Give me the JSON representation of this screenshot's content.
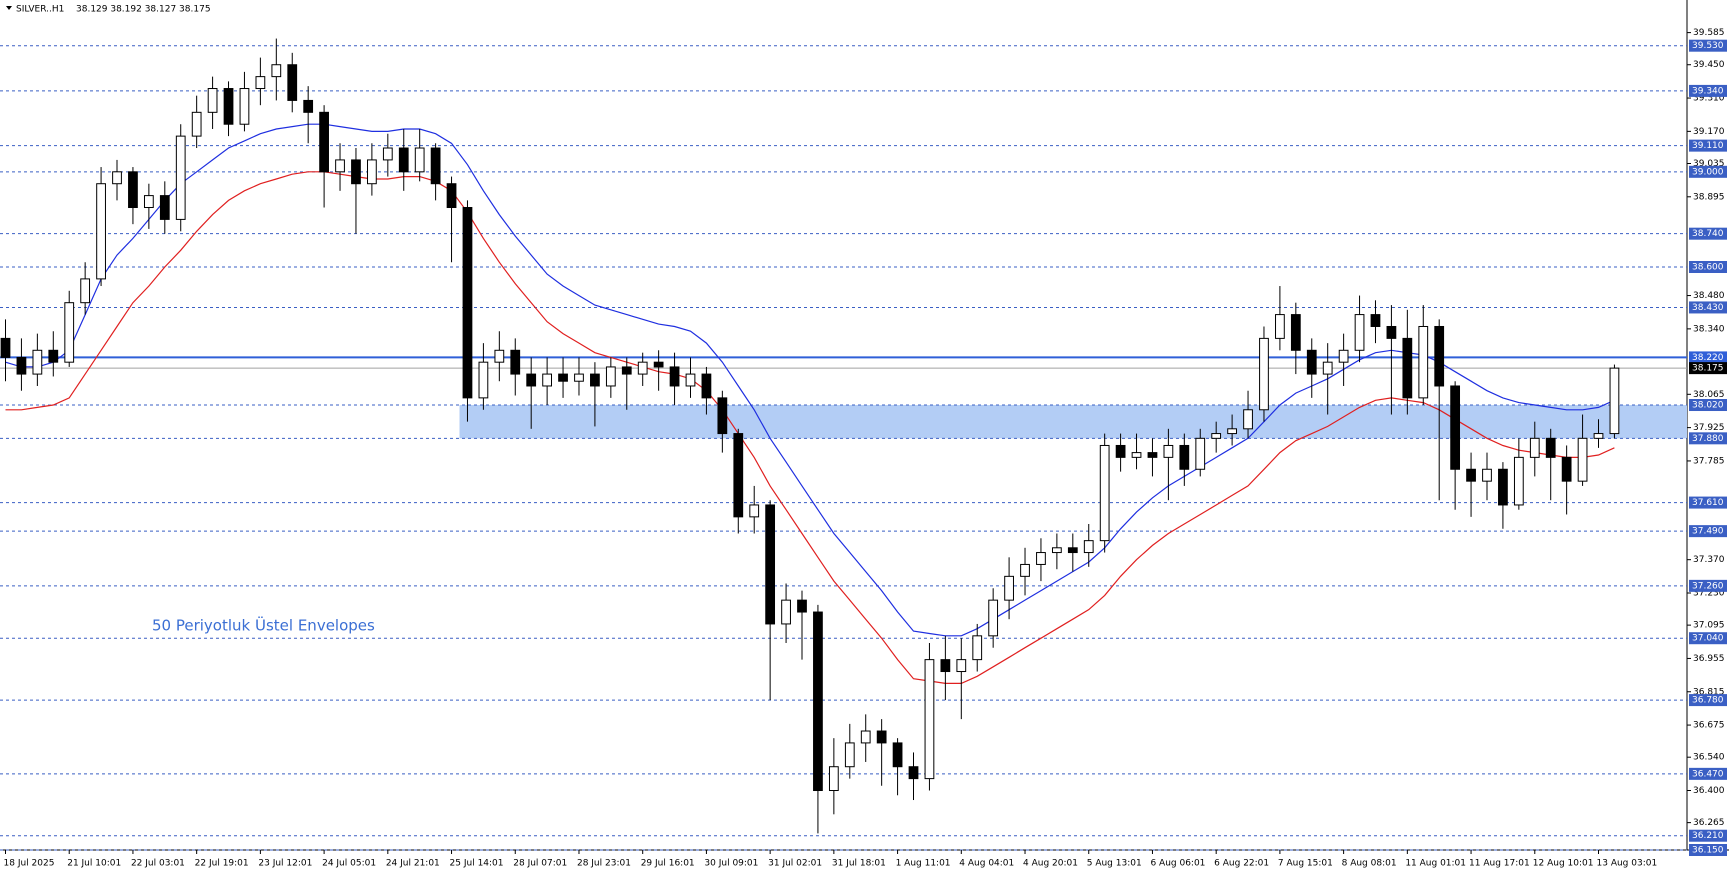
{
  "chart_data": {
    "type": "candlestick",
    "title": "SILVER..H1",
    "ohlc_text": "38.129 38.192 38.127 38.175",
    "annotation": "50 Periyotluk Üstel Envelopes",
    "ylim": [
      36.15,
      39.68
    ],
    "yticks": [
      39.585,
      {
        "value": 39.45,
        "label": "39.450"
      },
      {
        "value": 39.31,
        "label": "39.310"
      },
      {
        "value": 39.17,
        "label": "39.170"
      },
      39.035,
      38.895,
      {
        "value": 38.48,
        "label": "38.480"
      },
      {
        "value": 38.34,
        "label": "38.340"
      },
      38.065,
      37.925,
      37.785,
      {
        "value": 37.37,
        "label": "37.370"
      },
      {
        "value": 37.23,
        "label": "37.230"
      },
      37.095,
      36.955,
      36.815,
      36.675,
      {
        "value": 36.54,
        "label": "36.540"
      },
      {
        "value": 36.4,
        "label": "36.400"
      },
      36.265
    ],
    "categories": [
      "18 Jul 2025",
      null,
      null,
      null,
      "21 Jul 10:01",
      null,
      null,
      null,
      "22 Jul 03:01",
      null,
      null,
      null,
      "22 Jul 19:01",
      null,
      null,
      null,
      "23 Jul 12:01",
      null,
      null,
      null,
      "24 Jul 05:01",
      null,
      null,
      null,
      "24 Jul 21:01",
      null,
      null,
      null,
      "25 Jul 14:01",
      null,
      null,
      null,
      "28 Jul 07:01",
      null,
      null,
      null,
      "28 Jul 23:01",
      null,
      null,
      null,
      "29 Jul 16:01",
      null,
      null,
      null,
      "30 Jul 09:01",
      null,
      null,
      null,
      "31 Jul 02:01",
      null,
      null,
      null,
      "31 Jul 18:01",
      null,
      null,
      null,
      "1 Aug 11:01",
      null,
      null,
      null,
      "4 Aug 04:01",
      null,
      null,
      null,
      "4 Aug 20:01",
      null,
      null,
      null,
      "5 Aug 13:01",
      null,
      null,
      null,
      "6 Aug 06:01",
      null,
      null,
      null,
      "6 Aug 22:01",
      null,
      null,
      null,
      "7 Aug 15:01",
      null,
      null,
      null,
      "8 Aug 08:01",
      null,
      null,
      null,
      "11 Aug 01:01",
      null,
      null,
      null,
      "11 Aug 17:01",
      null,
      null,
      null,
      "12 Aug 10:01",
      null,
      null,
      null,
      "13 Aug 03:01",
      null
    ],
    "candles": [
      [
        38.3,
        38.38,
        38.12,
        38.22
      ],
      [
        38.22,
        38.3,
        38.08,
        38.15
      ],
      [
        38.15,
        38.32,
        38.1,
        38.25
      ],
      [
        38.25,
        38.33,
        38.14,
        38.2
      ],
      [
        38.2,
        38.5,
        38.18,
        38.45
      ],
      [
        38.45,
        38.62,
        38.4,
        38.55
      ],
      [
        38.55,
        39.02,
        38.52,
        38.95
      ],
      [
        38.95,
        39.05,
        38.88,
        39.0
      ],
      [
        39.0,
        39.02,
        38.78,
        38.85
      ],
      [
        38.85,
        38.95,
        38.76,
        38.9
      ],
      [
        38.9,
        38.96,
        38.74,
        38.8
      ],
      [
        38.8,
        39.2,
        38.75,
        39.15
      ],
      [
        39.15,
        39.32,
        39.1,
        39.25
      ],
      [
        39.25,
        39.4,
        39.18,
        39.35
      ],
      [
        39.35,
        39.38,
        39.15,
        39.2
      ],
      [
        39.2,
        39.42,
        39.17,
        39.35
      ],
      [
        39.35,
        39.48,
        39.28,
        39.4
      ],
      [
        39.4,
        39.56,
        39.3,
        39.45
      ],
      [
        39.45,
        39.5,
        39.25,
        39.3
      ],
      [
        39.3,
        39.36,
        39.12,
        39.25
      ],
      [
        39.25,
        39.28,
        38.85,
        39.0
      ],
      [
        39.0,
        39.12,
        38.92,
        39.05
      ],
      [
        39.05,
        39.1,
        38.74,
        38.95
      ],
      [
        38.95,
        39.12,
        38.9,
        39.05
      ],
      [
        39.05,
        39.16,
        38.98,
        39.1
      ],
      [
        39.1,
        39.18,
        38.92,
        39.0
      ],
      [
        39.0,
        39.18,
        38.96,
        39.1
      ],
      [
        39.1,
        39.12,
        38.88,
        38.95
      ],
      [
        38.95,
        38.98,
        38.62,
        38.85
      ],
      [
        38.85,
        38.88,
        37.95,
        38.05
      ],
      [
        38.05,
        38.28,
        38.0,
        38.2
      ],
      [
        38.2,
        38.33,
        38.12,
        38.25
      ],
      [
        38.25,
        38.3,
        38.06,
        38.15
      ],
      [
        38.15,
        38.22,
        37.92,
        38.1
      ],
      [
        38.1,
        38.22,
        38.02,
        38.15
      ],
      [
        38.15,
        38.22,
        38.05,
        38.12
      ],
      [
        38.12,
        38.22,
        38.06,
        38.15
      ],
      [
        38.15,
        38.2,
        37.93,
        38.1
      ],
      [
        38.1,
        38.22,
        38.05,
        38.18
      ],
      [
        38.18,
        38.22,
        38.0,
        38.15
      ],
      [
        38.15,
        38.24,
        38.1,
        38.2
      ],
      [
        38.2,
        38.25,
        38.08,
        38.18
      ],
      [
        38.18,
        38.24,
        38.02,
        38.1
      ],
      [
        38.1,
        38.22,
        38.05,
        38.15
      ],
      [
        38.15,
        38.18,
        37.98,
        38.05
      ],
      [
        38.05,
        38.08,
        37.82,
        37.9
      ],
      [
        37.9,
        37.92,
        37.48,
        37.55
      ],
      [
        37.55,
        37.68,
        37.48,
        37.6
      ],
      [
        37.6,
        37.62,
        36.78,
        37.1
      ],
      [
        37.1,
        37.27,
        37.02,
        37.2
      ],
      [
        37.2,
        37.24,
        36.95,
        37.15
      ],
      [
        37.15,
        37.18,
        36.22,
        36.4
      ],
      [
        36.4,
        36.62,
        36.3,
        36.5
      ],
      [
        36.5,
        36.68,
        36.45,
        36.6
      ],
      [
        36.6,
        36.72,
        36.52,
        36.65
      ],
      [
        36.65,
        36.7,
        36.42,
        36.6
      ],
      [
        36.6,
        36.62,
        36.38,
        36.5
      ],
      [
        36.5,
        36.56,
        36.36,
        36.45
      ],
      [
        36.45,
        37.02,
        36.4,
        36.95
      ],
      [
        36.95,
        37.05,
        36.78,
        36.9
      ],
      [
        36.9,
        37.04,
        36.7,
        36.95
      ],
      [
        36.95,
        37.1,
        36.9,
        37.05
      ],
      [
        37.05,
        37.25,
        37.0,
        37.2
      ],
      [
        37.2,
        37.38,
        37.12,
        37.3
      ],
      [
        37.3,
        37.42,
        37.22,
        37.35
      ],
      [
        37.35,
        37.46,
        37.28,
        37.4
      ],
      [
        37.4,
        37.48,
        37.33,
        37.42
      ],
      [
        37.42,
        37.48,
        37.32,
        37.4
      ],
      [
        37.4,
        37.52,
        37.34,
        37.45
      ],
      [
        37.45,
        37.9,
        37.4,
        37.85
      ],
      [
        37.85,
        37.9,
        37.74,
        37.8
      ],
      [
        37.8,
        37.9,
        37.75,
        37.82
      ],
      [
        37.82,
        37.88,
        37.72,
        37.8
      ],
      [
        37.8,
        37.92,
        37.62,
        37.85
      ],
      [
        37.85,
        37.9,
        37.68,
        37.75
      ],
      [
        37.75,
        37.92,
        37.72,
        37.88
      ],
      [
        37.88,
        37.95,
        37.82,
        37.9
      ],
      [
        37.9,
        37.98,
        37.85,
        37.92
      ],
      [
        37.92,
        38.08,
        37.88,
        38.0
      ],
      [
        38.0,
        38.35,
        37.95,
        38.3
      ],
      [
        38.3,
        38.52,
        38.25,
        38.4
      ],
      [
        38.4,
        38.45,
        38.15,
        38.25
      ],
      [
        38.25,
        38.3,
        38.05,
        38.15
      ],
      [
        38.15,
        38.28,
        37.98,
        38.2
      ],
      [
        38.2,
        38.32,
        38.1,
        38.25
      ],
      [
        38.25,
        38.48,
        38.2,
        38.4
      ],
      [
        38.4,
        38.46,
        38.28,
        38.35
      ],
      [
        38.35,
        38.44,
        37.98,
        38.3
      ],
      [
        38.3,
        38.42,
        37.98,
        38.05
      ],
      [
        38.05,
        38.44,
        38.02,
        38.35
      ],
      [
        38.35,
        38.38,
        37.62,
        38.1
      ],
      [
        38.1,
        38.12,
        37.58,
        37.75
      ],
      [
        37.75,
        37.82,
        37.55,
        37.7
      ],
      [
        37.7,
        37.82,
        37.62,
        37.75
      ],
      [
        37.75,
        37.78,
        37.5,
        37.6
      ],
      [
        37.6,
        37.88,
        37.58,
        37.8
      ],
      [
        37.8,
        37.95,
        37.72,
        37.88
      ],
      [
        37.88,
        37.92,
        37.62,
        37.8
      ],
      [
        37.8,
        37.85,
        37.56,
        37.7
      ],
      [
        37.7,
        37.98,
        37.68,
        37.88
      ],
      [
        37.88,
        37.96,
        37.84,
        37.9
      ],
      [
        37.9,
        38.19,
        37.88,
        38.175
      ]
    ],
    "lines": [
      {
        "color": "#1f2fe0",
        "values": [
          38.2,
          38.18,
          38.18,
          38.2,
          38.25,
          38.4,
          38.55,
          38.65,
          38.72,
          38.8,
          38.88,
          38.95,
          39.0,
          39.05,
          39.1,
          39.13,
          39.16,
          39.18,
          39.19,
          39.2,
          39.2,
          39.19,
          39.18,
          39.17,
          39.17,
          39.18,
          39.18,
          39.16,
          39.12,
          39.03,
          38.92,
          38.82,
          38.73,
          38.65,
          38.57,
          38.52,
          38.48,
          38.44,
          38.42,
          38.4,
          38.38,
          38.36,
          38.35,
          38.33,
          38.28,
          38.2,
          38.1,
          38.0,
          37.88,
          37.78,
          37.68,
          37.58,
          37.48,
          37.4,
          37.32,
          37.24,
          37.15,
          37.07,
          37.06,
          37.05,
          37.05,
          37.08,
          37.12,
          37.16,
          37.2,
          37.24,
          37.28,
          37.32,
          37.36,
          37.42,
          37.5,
          37.57,
          37.63,
          37.68,
          37.72,
          37.76,
          37.8,
          37.84,
          37.88,
          37.95,
          38.02,
          38.07,
          38.1,
          38.13,
          38.17,
          38.21,
          38.24,
          38.25,
          38.24,
          38.23,
          38.2,
          38.16,
          38.12,
          38.08,
          38.05,
          38.03,
          38.02,
          38.01,
          38.0,
          38.0,
          38.01,
          38.04
        ]
      },
      {
        "color": "#e02020",
        "values": [
          38.0,
          38.0,
          38.01,
          38.02,
          38.05,
          38.15,
          38.25,
          38.35,
          38.45,
          38.52,
          38.6,
          38.67,
          38.75,
          38.82,
          38.88,
          38.92,
          38.95,
          38.97,
          38.99,
          39.0,
          39.0,
          38.99,
          38.98,
          38.97,
          38.97,
          38.98,
          38.98,
          38.96,
          38.92,
          38.83,
          38.72,
          38.62,
          38.53,
          38.45,
          38.37,
          38.32,
          38.28,
          38.24,
          38.22,
          38.2,
          38.18,
          38.16,
          38.15,
          38.13,
          38.08,
          38.0,
          37.9,
          37.8,
          37.68,
          37.58,
          37.48,
          37.38,
          37.28,
          37.2,
          37.12,
          37.04,
          36.95,
          36.87,
          36.86,
          36.85,
          36.85,
          36.88,
          36.92,
          36.96,
          37.0,
          37.04,
          37.08,
          37.12,
          37.16,
          37.22,
          37.3,
          37.37,
          37.43,
          37.48,
          37.52,
          37.56,
          37.6,
          37.64,
          37.68,
          37.75,
          37.82,
          37.87,
          37.9,
          37.93,
          37.97,
          38.01,
          38.04,
          38.05,
          38.04,
          38.03,
          38.0,
          37.96,
          37.92,
          37.88,
          37.85,
          37.83,
          37.82,
          37.81,
          37.8,
          37.8,
          37.81,
          37.84
        ]
      }
    ],
    "levels": [
      {
        "value": 39.53,
        "label": "39.530"
      },
      {
        "value": 39.34,
        "label": "39.340"
      },
      {
        "value": 39.11,
        "label": "39.110"
      },
      {
        "value": 39,
        "label": "39.000"
      },
      {
        "value": 38.74,
        "label": "38.740"
      },
      {
        "value": 38.6,
        "label": "38.600"
      },
      {
        "value": 38.43,
        "label": "38.430"
      },
      {
        "value": 38.02,
        "label": "38.020"
      },
      {
        "value": 37.88,
        "label": "37.880"
      },
      {
        "value": 37.61,
        "label": "37.610"
      },
      {
        "value": 37.49,
        "label": "37.490"
      },
      {
        "value": 37.26,
        "label": "37.260"
      },
      {
        "value": 37.04,
        "label": "37.040"
      },
      {
        "value": 36.78,
        "label": "36.780"
      },
      {
        "value": 36.47,
        "label": "36.470"
      },
      {
        "value": 36.21,
        "label": "36.210"
      },
      {
        "value": 36.15,
        "label": "36.150"
      }
    ],
    "level_color": "#3a5fc4",
    "key_level": {
      "value": 38.22,
      "label": "38.220",
      "color": "#2f5fd8"
    },
    "zone": {
      "from": 37.88,
      "to": 38.02,
      "start_index": 29,
      "color": "#b3cdf5"
    },
    "last_price": 38.175
  }
}
